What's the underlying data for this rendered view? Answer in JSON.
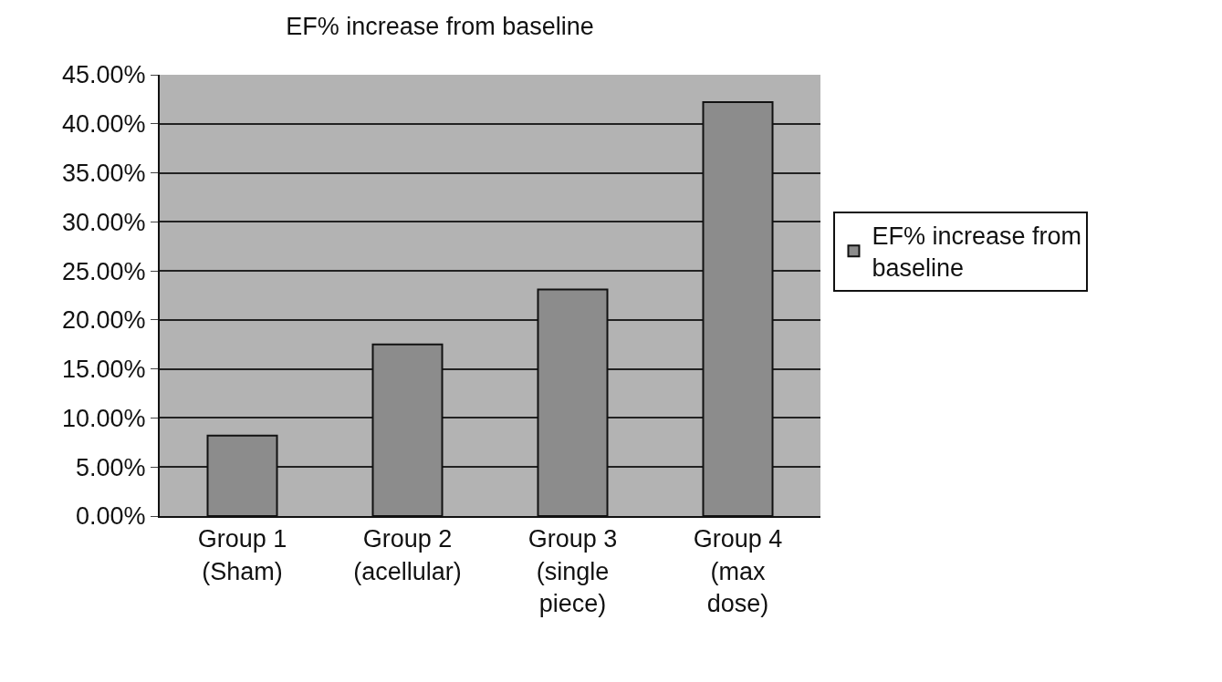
{
  "chart_data": {
    "type": "bar",
    "title": "EF% increase from baseline",
    "categories": [
      "Group 1\n(Sham)",
      "Group 2\n(acellular)",
      "Group 3\n(single\npiece)",
      "Group 4\n(max\ndose)"
    ],
    "series": [
      {
        "name": "EF% increase from\nbaseline",
        "color": "#8c8c8c",
        "values": [
          8.2,
          17.5,
          23.1,
          42.2
        ]
      }
    ],
    "ylim": [
      0,
      45
    ],
    "yticks": [
      {
        "value": 0,
        "label": "0.00%"
      },
      {
        "value": 5,
        "label": "5.00%"
      },
      {
        "value": 10,
        "label": "10.00%"
      },
      {
        "value": 15,
        "label": "15.00%"
      },
      {
        "value": 20,
        "label": "20.00%"
      },
      {
        "value": 25,
        "label": "25.00%"
      },
      {
        "value": 30,
        "label": "30.00%"
      },
      {
        "value": 35,
        "label": "35.00%"
      },
      {
        "value": 40,
        "label": "40.00%"
      },
      {
        "value": 45,
        "label": "45.00%"
      }
    ],
    "grid": "y",
    "legend": "right"
  }
}
